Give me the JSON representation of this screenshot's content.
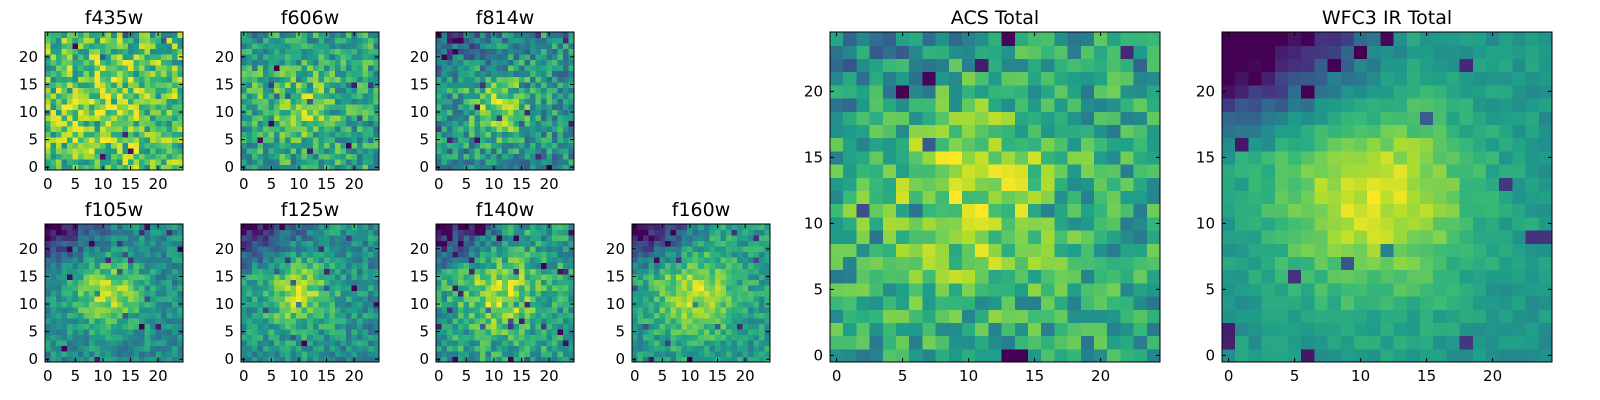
{
  "colors": {
    "colormap": "viridis",
    "background": "#ffffff",
    "axis": "#000000"
  },
  "chart_data": [
    {
      "id": "f435w",
      "type": "heatmap",
      "title": "f435w",
      "xlabel": "",
      "ylabel": "",
      "xlim": [
        -0.5,
        24.5
      ],
      "ylim": [
        -0.5,
        24.5
      ],
      "xticks": [
        0,
        5,
        10,
        15,
        20
      ],
      "yticks": [
        0,
        5,
        10,
        15,
        20
      ],
      "grid_size": 25,
      "colormap": "viridis",
      "pattern": {
        "peak": [
          11,
          11
        ],
        "sigma": 6,
        "amplitude": 0.1,
        "base": 0.7,
        "noise": 0.26,
        "upper_left_dark": 0.0,
        "seed": 11
      }
    },
    {
      "id": "f606w",
      "type": "heatmap",
      "title": "f606w",
      "xlabel": "",
      "ylabel": "",
      "xlim": [
        -0.5,
        24.5
      ],
      "ylim": [
        -0.5,
        24.5
      ],
      "xticks": [
        0,
        5,
        10,
        15,
        20
      ],
      "yticks": [
        0,
        5,
        10,
        15,
        20
      ],
      "grid_size": 25,
      "colormap": "viridis",
      "pattern": {
        "peak": [
          10,
          11
        ],
        "sigma": 4.5,
        "amplitude": 0.22,
        "base": 0.58,
        "noise": 0.22,
        "upper_left_dark": 0.0,
        "seed": 23
      }
    },
    {
      "id": "f814w",
      "type": "heatmap",
      "title": "f814w",
      "xlabel": "",
      "ylabel": "",
      "xlim": [
        -0.5,
        24.5
      ],
      "ylim": [
        -0.5,
        24.5
      ],
      "xticks": [
        0,
        5,
        10,
        15,
        20
      ],
      "yticks": [
        0,
        5,
        10,
        15,
        20
      ],
      "grid_size": 25,
      "colormap": "viridis",
      "pattern": {
        "peak": [
          11,
          11
        ],
        "sigma": 4,
        "amplitude": 0.34,
        "base": 0.5,
        "noise": 0.22,
        "upper_left_dark": 0.18,
        "seed": 37
      }
    },
    {
      "id": "f105w",
      "type": "heatmap",
      "title": "f105w",
      "xlabel": "",
      "ylabel": "",
      "xlim": [
        -0.5,
        24.5
      ],
      "ylim": [
        -0.5,
        24.5
      ],
      "xticks": [
        0,
        5,
        10,
        15,
        20
      ],
      "yticks": [
        0,
        5,
        10,
        15,
        20
      ],
      "grid_size": 25,
      "colormap": "viridis",
      "pattern": {
        "peak": [
          11,
          12
        ],
        "sigma": 4.5,
        "amplitude": 0.38,
        "base": 0.48,
        "noise": 0.14,
        "upper_left_dark": 0.3,
        "seed": 41
      }
    },
    {
      "id": "f125w",
      "type": "heatmap",
      "title": "f125w",
      "xlabel": "",
      "ylabel": "",
      "xlim": [
        -0.5,
        24.5
      ],
      "ylim": [
        -0.5,
        24.5
      ],
      "xticks": [
        0,
        5,
        10,
        15,
        20
      ],
      "yticks": [
        0,
        5,
        10,
        15,
        20
      ],
      "grid_size": 25,
      "colormap": "viridis",
      "pattern": {
        "peak": [
          10,
          12
        ],
        "sigma": 4.5,
        "amplitude": 0.36,
        "base": 0.5,
        "noise": 0.16,
        "upper_left_dark": 0.3,
        "seed": 53
      }
    },
    {
      "id": "f140w",
      "type": "heatmap",
      "title": "f140w",
      "xlabel": "",
      "ylabel": "",
      "xlim": [
        -0.5,
        24.5
      ],
      "ylim": [
        -0.5,
        24.5
      ],
      "xticks": [
        0,
        5,
        10,
        15,
        20
      ],
      "yticks": [
        0,
        5,
        10,
        15,
        20
      ],
      "grid_size": 25,
      "colormap": "viridis",
      "pattern": {
        "peak": [
          11,
          12
        ],
        "sigma": 5,
        "amplitude": 0.32,
        "base": 0.55,
        "noise": 0.18,
        "upper_left_dark": 0.36,
        "seed": 67
      }
    },
    {
      "id": "f160w",
      "type": "heatmap",
      "title": "f160w",
      "xlabel": "",
      "ylabel": "",
      "xlim": [
        -0.5,
        24.5
      ],
      "ylim": [
        -0.5,
        24.5
      ],
      "xticks": [
        0,
        5,
        10,
        15,
        20
      ],
      "yticks": [
        0,
        5,
        10,
        15,
        20
      ],
      "grid_size": 25,
      "colormap": "viridis",
      "pattern": {
        "peak": [
          11,
          12
        ],
        "sigma": 5,
        "amplitude": 0.35,
        "base": 0.55,
        "noise": 0.14,
        "upper_left_dark": 0.42,
        "seed": 79
      }
    },
    {
      "id": "acs-total",
      "type": "heatmap",
      "title": "ACS Total",
      "xlabel": "",
      "ylabel": "",
      "xlim": [
        -0.5,
        24.5
      ],
      "ylim": [
        -0.5,
        24.5
      ],
      "xticks": [
        0,
        5,
        10,
        15,
        20
      ],
      "yticks": [
        0,
        5,
        10,
        15,
        20
      ],
      "grid_size": 25,
      "colormap": "viridis",
      "pattern": {
        "peak": [
          10,
          12
        ],
        "sigma": 5,
        "amplitude": 0.3,
        "base": 0.58,
        "noise": 0.2,
        "upper_left_dark": 0.12,
        "seed": 97
      }
    },
    {
      "id": "wfc3-ir-total",
      "type": "heatmap",
      "title": "WFC3 IR Total",
      "xlabel": "",
      "ylabel": "",
      "xlim": [
        -0.5,
        24.5
      ],
      "ylim": [
        -0.5,
        24.5
      ],
      "xticks": [
        0,
        5,
        10,
        15,
        20
      ],
      "yticks": [
        0,
        5,
        10,
        15,
        20
      ],
      "grid_size": 25,
      "colormap": "viridis",
      "pattern": {
        "peak": [
          11,
          12
        ],
        "sigma": 5.5,
        "amplitude": 0.42,
        "base": 0.52,
        "noise": 0.07,
        "upper_left_dark": 0.52,
        "seed": 101
      }
    }
  ]
}
